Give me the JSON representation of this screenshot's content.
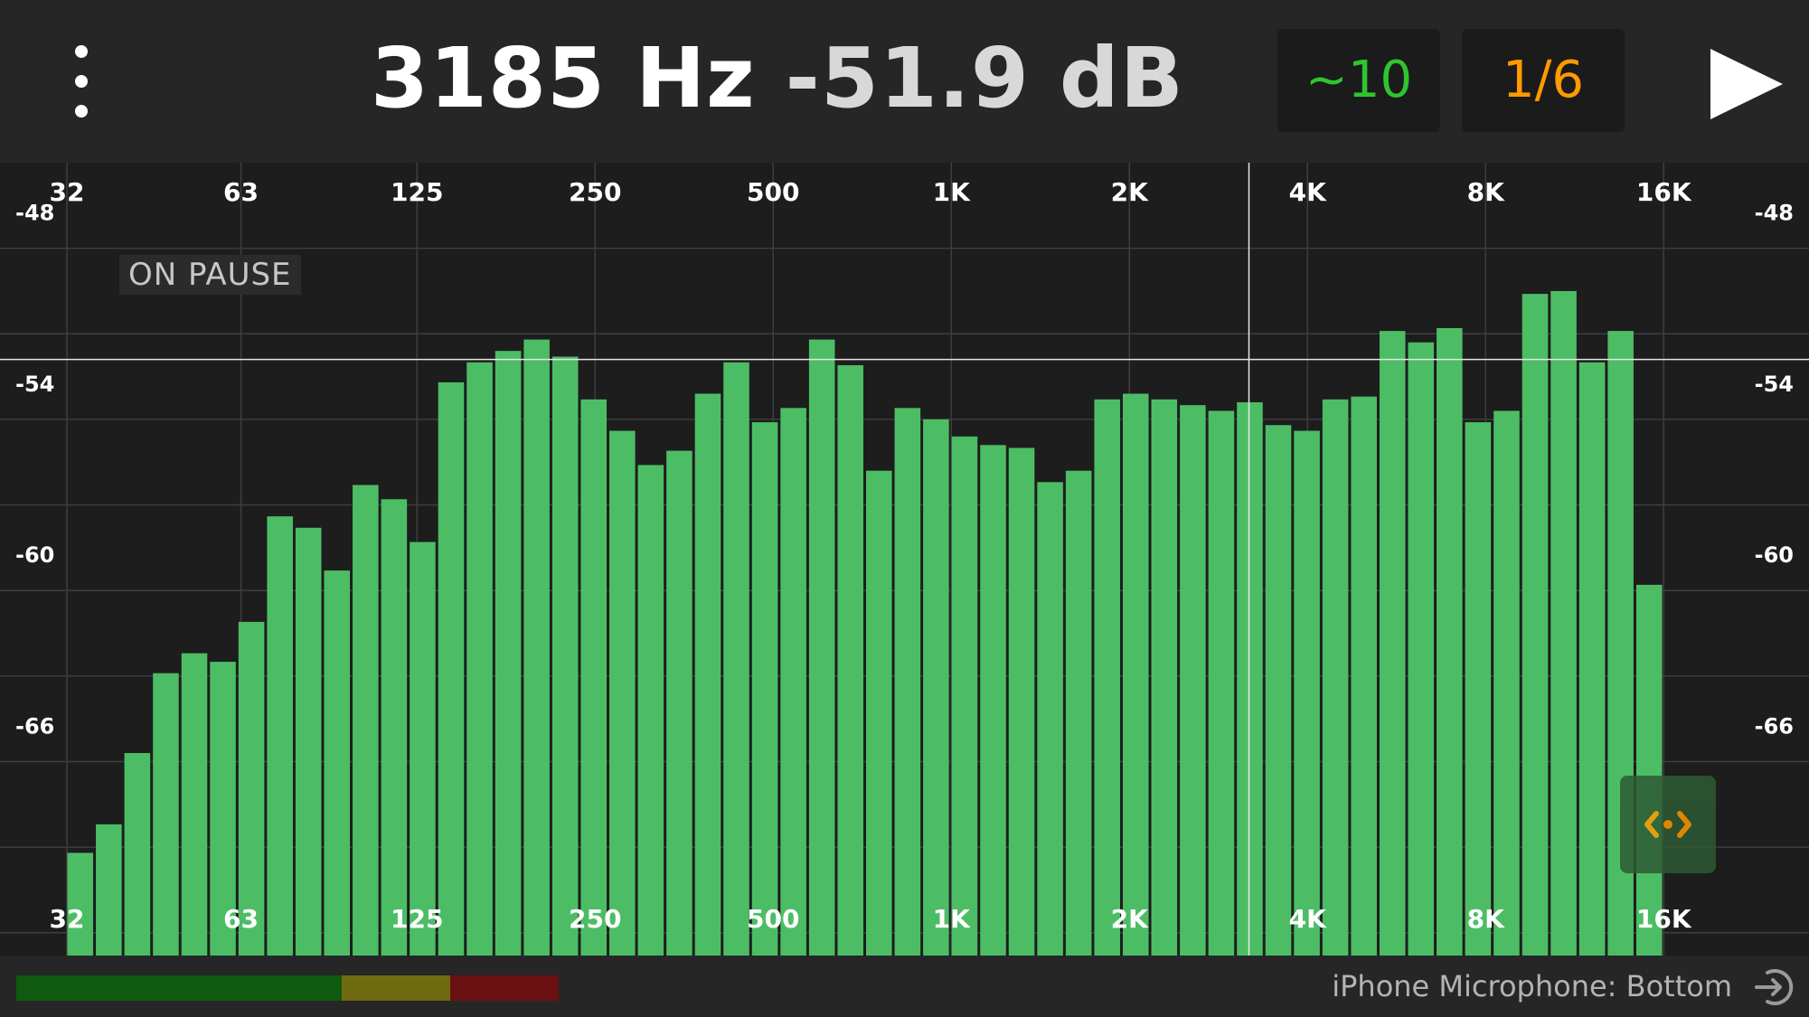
{
  "header": {
    "frequency": "3185 Hz",
    "level": "-51.9 dB",
    "averaging": "~10",
    "octave": "1/6",
    "menu_icon": "more-vertical-icon",
    "play_icon": "play-icon"
  },
  "status": {
    "pause_label": "ON PAUSE"
  },
  "footer": {
    "source": "iPhone Microphone: Bottom",
    "source_icon": "input-source-icon",
    "level_meter": {
      "segments": [
        {
          "color": "#0f5a0f",
          "fraction": 0.6
        },
        {
          "color": "#6f6a10",
          "fraction": 0.2
        },
        {
          "color": "#6a1212",
          "fraction": 0.2
        }
      ]
    }
  },
  "colors": {
    "bar": "#4dbd65",
    "avg": "#2ec52e",
    "octave": "#ff9a00",
    "zoom": "#ff9a00"
  },
  "chart_data": {
    "type": "bar",
    "x_scale": "log",
    "x_ticks": [
      "32",
      "63",
      "125",
      "250",
      "500",
      "1K",
      "2K",
      "4K",
      "8K",
      "16K"
    ],
    "x_tick_freqs": [
      32,
      63,
      125,
      250,
      500,
      1000,
      2000,
      4000,
      8000,
      16000
    ],
    "y_ticks": [
      "-48",
      "-54",
      "-60",
      "-66"
    ],
    "y_tick_values": [
      -48,
      -54,
      -60,
      -66
    ],
    "ylim": [
      -72.8,
      -45.0
    ],
    "cursor": {
      "frequency": 3185,
      "level": -51.9
    },
    "values": [
      -69.2,
      -68.2,
      -65.7,
      -62.9,
      -62.2,
      -62.5,
      -61.1,
      -57.4,
      -57.8,
      -59.3,
      -56.3,
      -56.8,
      -58.3,
      -52.7,
      -52.0,
      -51.6,
      -51.2,
      -51.8,
      -53.3,
      -54.4,
      -55.6,
      -55.1,
      -53.1,
      -52.0,
      -54.1,
      -53.6,
      -51.2,
      -52.1,
      -55.8,
      -53.6,
      -54.0,
      -54.6,
      -54.9,
      -55.0,
      -56.2,
      -55.8,
      -53.3,
      -53.1,
      -53.3,
      -53.5,
      -53.7,
      -53.4,
      -54.2,
      -54.4,
      -53.3,
      -53.2,
      -50.9,
      -51.3,
      -50.8,
      -54.1,
      -53.7,
      -49.6,
      -49.5,
      -52.0,
      -50.9,
      -59.8
    ]
  }
}
